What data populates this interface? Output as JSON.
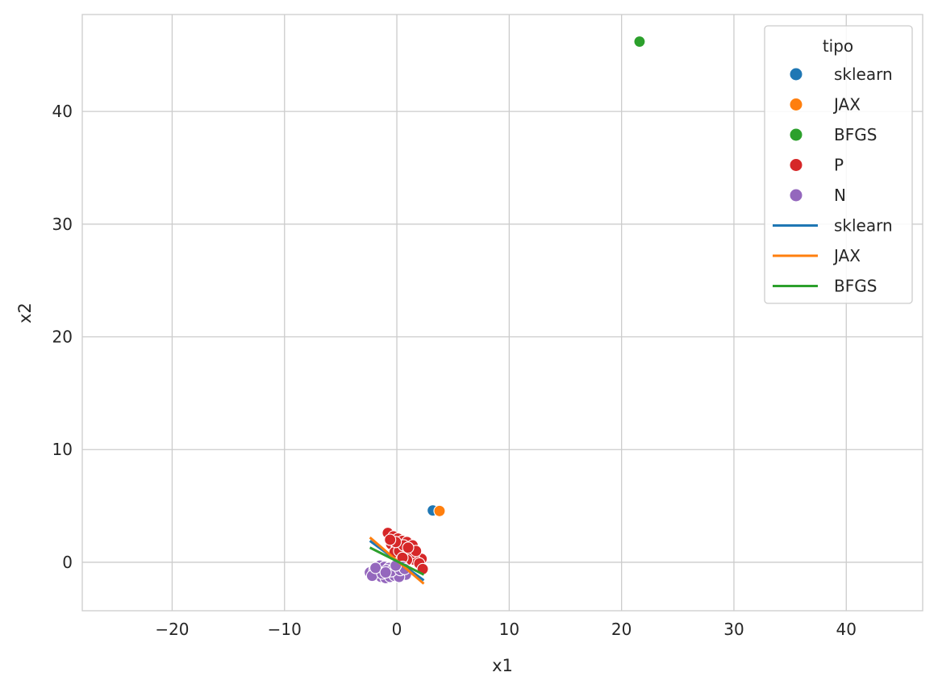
{
  "chart_data": {
    "type": "scatter",
    "title": "",
    "xlabel": "x1",
    "ylabel": "x2",
    "xlim": [
      -28,
      46.8
    ],
    "ylim": [
      -4.3,
      48.6
    ],
    "xticks": [
      -20,
      -10,
      0,
      10,
      20,
      30,
      40
    ],
    "yticks": [
      0,
      10,
      20,
      30,
      40
    ],
    "xtick_labels": [
      "−20",
      "−10",
      "0",
      "10",
      "20",
      "30",
      "40"
    ],
    "ytick_labels": [
      "0",
      "10",
      "20",
      "30",
      "40"
    ],
    "grid": true,
    "legend": {
      "title": "tipo",
      "position": "top-right",
      "entries": [
        {
          "label": "sklearn",
          "kind": "marker",
          "color": "#1f77b4"
        },
        {
          "label": "JAX",
          "kind": "marker",
          "color": "#ff7f0e"
        },
        {
          "label": "BFGS",
          "kind": "marker",
          "color": "#2ca02c"
        },
        {
          "label": "P",
          "kind": "marker",
          "color": "#d62728"
        },
        {
          "label": "N",
          "kind": "marker",
          "color": "#9467bd"
        },
        {
          "label": "sklearn",
          "kind": "line",
          "color": "#1f77b4"
        },
        {
          "label": "JAX",
          "kind": "line",
          "color": "#ff7f0e"
        },
        {
          "label": "BFGS",
          "kind": "line",
          "color": "#2ca02c"
        }
      ]
    },
    "scatter_series": [
      {
        "name": "sklearn",
        "color": "#1f77b4",
        "points": [
          [
            3.2,
            4.6
          ]
        ]
      },
      {
        "name": "JAX",
        "color": "#ff7f0e",
        "points": [
          [
            3.8,
            4.55
          ]
        ]
      },
      {
        "name": "BFGS",
        "color": "#2ca02c",
        "points": [
          [
            21.6,
            46.2
          ]
        ]
      },
      {
        "name": "P",
        "color": "#d62728",
        "points": [
          [
            -0.8,
            2.6
          ],
          [
            -0.3,
            2.3
          ],
          [
            0.1,
            2.1
          ],
          [
            0.5,
            1.9
          ],
          [
            0.9,
            1.8
          ],
          [
            1.4,
            1.5
          ],
          [
            -0.5,
            1.6
          ],
          [
            0.0,
            1.4
          ],
          [
            0.3,
            1.2
          ],
          [
            0.7,
            1.1
          ],
          [
            1.1,
            0.9
          ],
          [
            1.5,
            0.7
          ],
          [
            1.9,
            0.5
          ],
          [
            2.2,
            0.3
          ],
          [
            -0.2,
            0.9
          ],
          [
            0.4,
            0.8
          ],
          [
            0.8,
            0.6
          ],
          [
            1.2,
            0.4
          ],
          [
            1.6,
            0.2
          ],
          [
            2.0,
            -0.1
          ],
          [
            2.3,
            -0.6
          ],
          [
            0.2,
            1.0
          ],
          [
            1.3,
            0.8
          ],
          [
            0.6,
            1.5
          ],
          [
            -0.1,
            1.8
          ],
          [
            1.7,
            1.0
          ],
          [
            0.9,
            0.2
          ],
          [
            1.0,
            1.3
          ],
          [
            -0.6,
            2.0
          ],
          [
            0.5,
            0.4
          ]
        ]
      },
      {
        "name": "N",
        "color": "#9467bd",
        "points": [
          [
            -2.4,
            -0.9
          ],
          [
            -2.0,
            -0.7
          ],
          [
            -1.6,
            -0.6
          ],
          [
            -1.2,
            -0.8
          ],
          [
            -0.8,
            -1.0
          ],
          [
            -0.4,
            -1.1
          ],
          [
            0.0,
            -1.0
          ],
          [
            0.4,
            -0.9
          ],
          [
            0.8,
            -1.1
          ],
          [
            -1.8,
            -1.1
          ],
          [
            -1.4,
            -1.3
          ],
          [
            -1.0,
            -1.4
          ],
          [
            -0.6,
            -1.3
          ],
          [
            -0.2,
            -1.2
          ],
          [
            0.2,
            -1.3
          ],
          [
            -1.5,
            -0.3
          ],
          [
            -1.1,
            -0.4
          ],
          [
            -0.7,
            -0.5
          ],
          [
            -0.3,
            -0.6
          ],
          [
            0.1,
            -0.5
          ],
          [
            0.5,
            -0.4
          ],
          [
            -2.2,
            -1.2
          ],
          [
            -1.3,
            -1.0
          ],
          [
            -0.9,
            -0.7
          ],
          [
            -0.5,
            -0.8
          ],
          [
            0.3,
            -0.7
          ],
          [
            0.7,
            -0.6
          ],
          [
            -1.9,
            -0.5
          ],
          [
            -1.0,
            -0.9
          ],
          [
            -0.1,
            -0.3
          ]
        ]
      }
    ],
    "line_series": [
      {
        "name": "sklearn",
        "color": "#1f77b4",
        "points": [
          [
            -2.4,
            1.9
          ],
          [
            2.4,
            -1.6
          ]
        ]
      },
      {
        "name": "JAX",
        "color": "#ff7f0e",
        "points": [
          [
            -2.4,
            2.2
          ],
          [
            2.4,
            -1.9
          ]
        ]
      },
      {
        "name": "BFGS",
        "color": "#2ca02c",
        "points": [
          [
            -2.4,
            1.3
          ],
          [
            2.4,
            -1.1
          ]
        ]
      }
    ]
  }
}
